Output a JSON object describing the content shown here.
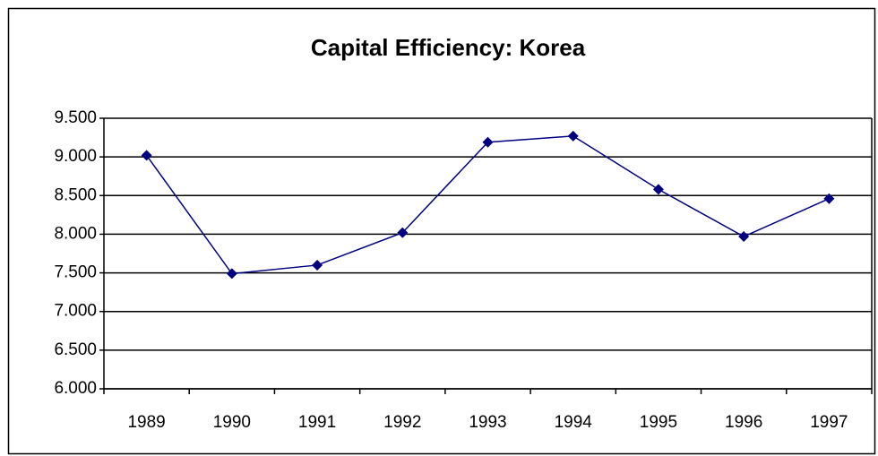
{
  "chart_data": {
    "type": "line",
    "title": "Capital Efficiency: Korea",
    "categories": [
      "1989",
      "1990",
      "1991",
      "1992",
      "1993",
      "1994",
      "1995",
      "1996",
      "1997"
    ],
    "series": [
      {
        "color": "#000080",
        "values": [
          9.02,
          7.49,
          7.6,
          8.02,
          9.19,
          9.27,
          8.58,
          7.97,
          8.46
        ]
      }
    ],
    "ylim": [
      6,
      9.5
    ],
    "yticks": [
      {
        "value": 6,
        "label": "6.000"
      },
      {
        "value": 6.5,
        "label": "6.500"
      },
      {
        "value": 7,
        "label": "7.000"
      },
      {
        "value": 7.5,
        "label": "7.500"
      },
      {
        "value": 8,
        "label": "8.000"
      },
      {
        "value": 8.5,
        "label": "8.500"
      },
      {
        "value": 9,
        "label": "9.000"
      },
      {
        "value": 9.5,
        "label": "9.500"
      }
    ],
    "grid": true
  }
}
